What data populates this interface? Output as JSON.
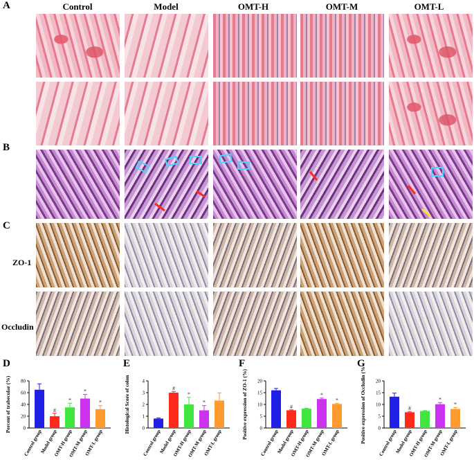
{
  "panel_letters": [
    "A",
    "B",
    "C",
    "D",
    "E",
    "F",
    "G"
  ],
  "columns": [
    "Control",
    "Model",
    "OMT-H",
    "OMT-M",
    "OMT-L"
  ],
  "row_labels": {
    "zo1": "ZO-1",
    "occludin": "Occludin"
  },
  "chart_data": [
    {
      "type": "bar",
      "panel": "D",
      "ylabel": "Percent of trabecular (%)",
      "categories": [
        "Control group",
        "Model group",
        "OMT-H group",
        "OMT-M group",
        "OMT-L group"
      ],
      "values": [
        65,
        20,
        35,
        50,
        32
      ],
      "errors": [
        10,
        5,
        7,
        7,
        6
      ],
      "markers": [
        "",
        "#",
        "*",
        "*",
        "*"
      ],
      "ylim": [
        0,
        80
      ],
      "yticks": [
        0,
        20,
        40,
        60,
        80
      ],
      "colors": [
        "#1f1fe6",
        "#ff2a1a",
        "#3ee63e",
        "#cc33ee",
        "#ff9a2e"
      ]
    },
    {
      "type": "bar",
      "panel": "E",
      "ylabel": "Histological Score of colon",
      "categories": [
        "Control group",
        "Model group",
        "OMT-H group",
        "OMT-M group",
        "OMT-L group"
      ],
      "values": [
        0.8,
        3.0,
        2.0,
        1.5,
        2.33
      ],
      "errors": [
        0.05,
        0.1,
        0.6,
        0.4,
        0.65
      ],
      "markers": [
        "",
        "#",
        "*",
        "*",
        ""
      ],
      "ylim": [
        0,
        4
      ],
      "yticks": [
        0,
        1,
        2,
        3,
        4
      ],
      "colors": [
        "#1f1fe6",
        "#ff2a1a",
        "#3ee63e",
        "#cc33ee",
        "#ff9a2e"
      ]
    },
    {
      "type": "bar",
      "panel": "F",
      "ylabel": "Positive expression of ZO-1 (%)",
      "categories": [
        "Control group",
        "Model group",
        "OMT-H group",
        "OMT-M group",
        "OMT-L group"
      ],
      "values": [
        16,
        7.5,
        8.2,
        12.3,
        10.2
      ],
      "errors": [
        0.8,
        0.2,
        0.2,
        0.4,
        0.3
      ],
      "markers": [
        "",
        "#",
        "",
        "*",
        "*"
      ],
      "ylim": [
        0,
        20
      ],
      "yticks": [
        0,
        5,
        10,
        15,
        20
      ],
      "colors": [
        "#1f1fe6",
        "#ff2a1a",
        "#3ee63e",
        "#cc33ee",
        "#ff9a2e"
      ]
    },
    {
      "type": "bar",
      "panel": "G",
      "ylabel": "Positive expression of Occludin (%)",
      "categories": [
        "Control group",
        "Model group",
        "OMT-H group",
        "OMT-M group",
        "OMT-L group"
      ],
      "values": [
        13.3,
        6.7,
        7.2,
        10.1,
        8.1
      ],
      "errors": [
        1.5,
        0.3,
        0.2,
        0.7,
        0.6
      ],
      "markers": [
        "",
        "#",
        "",
        "*",
        "*"
      ],
      "ylim": [
        0,
        20
      ],
      "yticks": [
        0,
        5,
        10,
        15,
        20
      ],
      "colors": [
        "#1f1fe6",
        "#ff2a1a",
        "#3ee63e",
        "#cc33ee",
        "#ff9a2e"
      ]
    }
  ]
}
